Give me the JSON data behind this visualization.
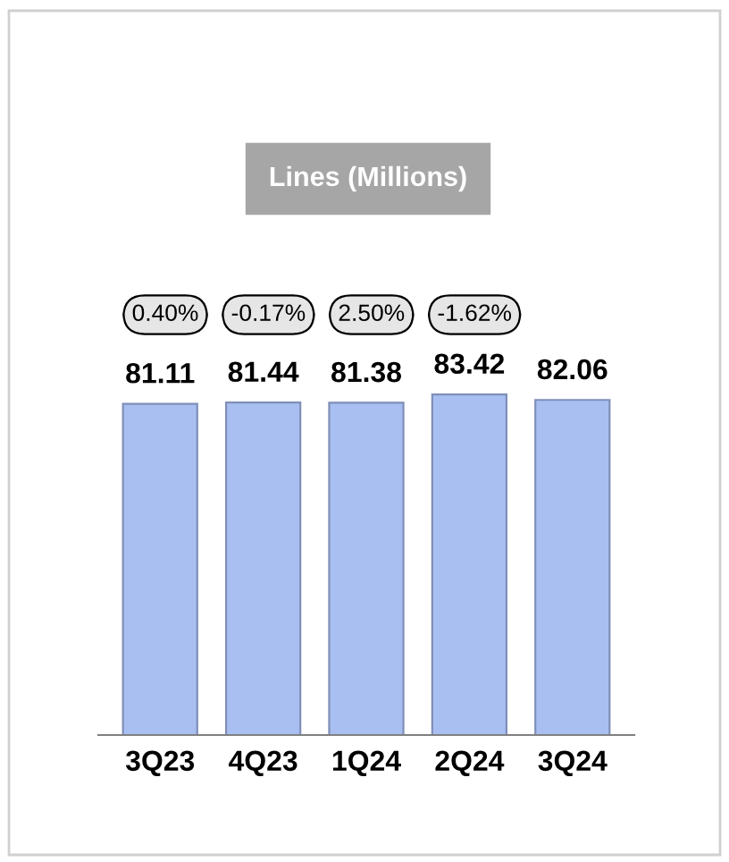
{
  "chart_data": {
    "type": "bar",
    "title": "Lines (Millions)",
    "categories": [
      "3Q23",
      "4Q23",
      "1Q24",
      "2Q24",
      "3Q24"
    ],
    "values": [
      81.11,
      81.44,
      81.38,
      83.42,
      82.06
    ],
    "color": "#a9bff2",
    "tick_labels": "x",
    "data_labels": true,
    "annotations": [
      "0.40%",
      "-0.17%",
      "2.50%",
      "-1.62%"
    ]
  }
}
